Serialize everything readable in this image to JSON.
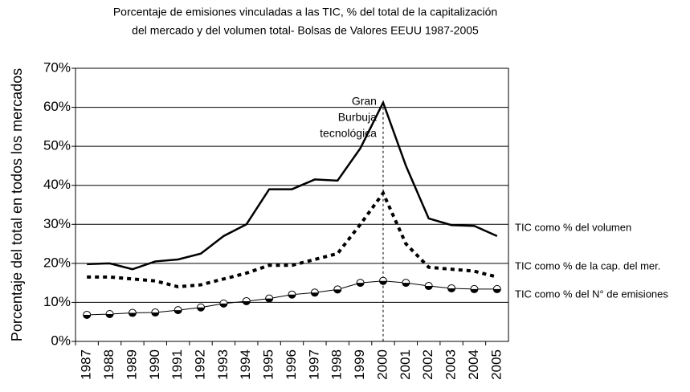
{
  "chart_data": {
    "type": "line",
    "title": [
      "Porcentaje de emisiones vinculadas a las TIC, % del total de la capitalización",
      "del mercado y del volumen total- Bolsas de Valores EEUU 1987-2005"
    ],
    "y_label": "Porcentaje del total en todos los mercados",
    "annotation": [
      "Gran",
      "Burbuja",
      "tecnológica"
    ],
    "annotation_x": "2000",
    "categories": [
      "1987",
      "1988",
      "1989",
      "1990",
      "1991",
      "1992",
      "1993",
      "1994",
      "1995",
      "1996",
      "1997",
      "1998",
      "1999",
      "2000",
      "2001",
      "2002",
      "2003",
      "2004",
      "2005"
    ],
    "series": [
      {
        "name": "TIC como % del volumen",
        "color": "#000000",
        "line_style": "solid",
        "marker": "none",
        "values": [
          19.8,
          20,
          18.5,
          20.5,
          21,
          22.5,
          27,
          30,
          39,
          39,
          41.5,
          41.2,
          49.5,
          61.2,
          45,
          31.5,
          29.8,
          29.6,
          27
        ]
      },
      {
        "name": "TIC como % de la cap. del mer.",
        "color": "#000000",
        "line_style": "dotted",
        "marker": "none",
        "values": [
          16.5,
          16.5,
          16,
          15.5,
          14,
          14.5,
          16,
          17.5,
          19.5,
          19.5,
          21,
          22.5,
          30,
          38,
          25,
          19,
          18.5,
          18,
          16.5
        ]
      },
      {
        "name": "TIC como % del N° de emisiones",
        "color": "#000000",
        "line_style": "solid",
        "marker": "circle",
        "values": [
          6.8,
          7,
          7.3,
          7.4,
          8,
          8.7,
          9.7,
          10.3,
          11,
          12,
          12.5,
          13.3,
          15,
          15.5,
          15,
          14.2,
          13.6,
          13.4,
          13.4
        ]
      }
    ],
    "ylim": [
      0,
      70
    ],
    "yticks": [
      {
        "value": 0,
        "label": "0%"
      },
      {
        "value": 10,
        "label": "10%"
      },
      {
        "value": 20,
        "label": "20%"
      },
      {
        "value": 30,
        "label": "30%"
      },
      {
        "value": 40,
        "label": "40%"
      },
      {
        "value": 50,
        "label": "50%"
      },
      {
        "value": 60,
        "label": "60%"
      },
      {
        "value": 70,
        "label": "70%"
      }
    ],
    "grid": true
  }
}
